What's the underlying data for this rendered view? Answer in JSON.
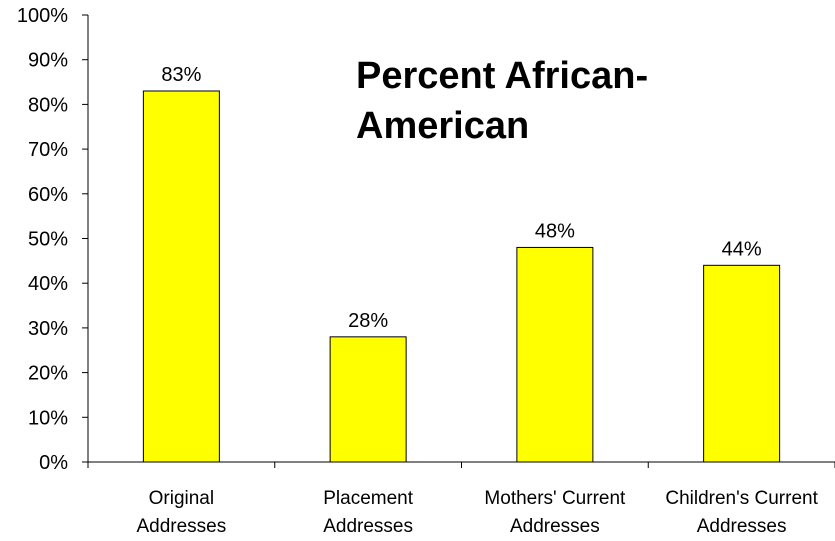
{
  "chart_data": {
    "type": "bar",
    "title_lines": [
      "Percent African-",
      "American"
    ],
    "categories": [
      [
        "Original",
        "Addresses"
      ],
      [
        "Placement",
        "Addresses"
      ],
      [
        "Mothers' Current",
        "Addresses"
      ],
      [
        "Children's Current",
        "Addresses"
      ]
    ],
    "values": [
      83,
      28,
      48,
      44
    ],
    "data_labels": [
      "83%",
      "28%",
      "48%",
      "44%"
    ],
    "ylim": [
      0,
      100
    ],
    "y_ticks": [
      0,
      10,
      20,
      30,
      40,
      50,
      60,
      70,
      80,
      90,
      100
    ],
    "y_tick_labels": [
      "0%",
      "10%",
      "20%",
      "30%",
      "40%",
      "50%",
      "60%",
      "70%",
      "80%",
      "90%",
      "100%"
    ],
    "xlabel": "",
    "ylabel": "",
    "grid": false,
    "legend": false,
    "bar_color": "#ffff00",
    "bar_edge_color": "#000000"
  }
}
